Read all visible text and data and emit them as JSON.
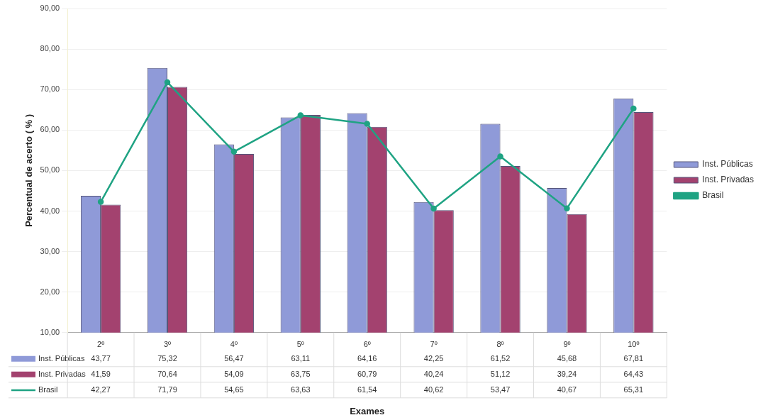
{
  "chart_data": {
    "type": "bar",
    "annotations": [
      "Exames"
    ],
    "ylabel": "Percentual de acerto ( % )",
    "categories": [
      "2º",
      "3º",
      "4º",
      "5º",
      "6º",
      "7º",
      "8º",
      "9º",
      "10º"
    ],
    "ylim": [
      10,
      90
    ],
    "yticks": [
      {
        "value": 10,
        "label": "10,00"
      },
      {
        "value": 20,
        "label": "20,00"
      },
      {
        "value": 30,
        "label": "30,00"
      },
      {
        "value": 40,
        "label": "40,00"
      },
      {
        "value": 50,
        "label": "50,00"
      },
      {
        "value": 60,
        "label": "60,00"
      },
      {
        "value": 70,
        "label": "70,00"
      },
      {
        "value": 80,
        "label": "80,00"
      },
      {
        "value": 90,
        "label": "90,00"
      }
    ],
    "grid": "y",
    "legend": "right",
    "marker": "circle",
    "series": [
      {
        "name": "Inst. Públicas",
        "color": "#8f9ad8",
        "values": [
          43.77,
          75.32,
          56.47,
          63.11,
          64.16,
          42.25,
          61.52,
          45.68,
          67.81
        ],
        "value_labels": [
          "43,77",
          "75,32",
          "56,47",
          "63,11",
          "64,16",
          "42,25",
          "61,52",
          "45,68",
          "67,81"
        ]
      },
      {
        "name": "Inst. Privadas",
        "color": "#a3426f",
        "values": [
          41.59,
          70.64,
          54.09,
          63.75,
          60.79,
          40.24,
          51.12,
          39.24,
          64.43
        ],
        "value_labels": [
          "41,59",
          "70,64",
          "54,09",
          "63,75",
          "60,79",
          "40,24",
          "51,12",
          "39,24",
          "64,43"
        ]
      },
      {
        "name": "Brasil",
        "type": "line",
        "color": "#1fa383",
        "values": [
          42.27,
          71.79,
          54.65,
          63.63,
          61.54,
          40.62,
          53.47,
          40.67,
          65.31
        ],
        "value_labels": [
          "42,27",
          "71,79",
          "54,65",
          "63,63",
          "61,54",
          "40,62",
          "53,47",
          "40,67",
          "65,31"
        ]
      }
    ]
  }
}
